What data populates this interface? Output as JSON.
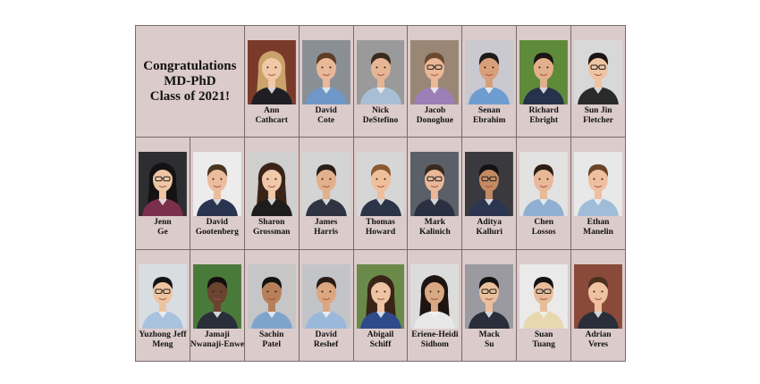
{
  "title": {
    "line1": "Congratulations",
    "line2": "MD-PhD",
    "line3": "Class of 2021!"
  },
  "graduates": [
    {
      "first": "Ann",
      "last": "Cathcart",
      "bg": "#7a3a2a",
      "hair": "#c9a36a",
      "skin": "#f0c8a8",
      "shirt": "#1e1e24",
      "glasses": false,
      "long_hair": true
    },
    {
      "first": "David",
      "last": "Cote",
      "bg": "#8a8f96",
      "hair": "#5a3e28",
      "skin": "#e8b898",
      "shirt": "#6f98c9",
      "glasses": false,
      "long_hair": false
    },
    {
      "first": "Nick",
      "last": "DeStefino",
      "bg": "#9a9a9a",
      "hair": "#3a2a1e",
      "skin": "#e6b594",
      "shirt": "#a8bed4",
      "glasses": false,
      "long_hair": false
    },
    {
      "first": "Jacob",
      "last": "Donoghue",
      "bg": "#9a8674",
      "hair": "#6a4a30",
      "skin": "#eab896",
      "shirt": "#9b7fb6",
      "glasses": true,
      "long_hair": false
    },
    {
      "first": "Senan",
      "last": "Ebrahim",
      "bg": "#c9c9cf",
      "hair": "#1e1a18",
      "skin": "#d8a07a",
      "shirt": "#6f9cd0",
      "glasses": false,
      "long_hair": false
    },
    {
      "first": "Richard",
      "last": "Ebright",
      "bg": "#5f8a3a",
      "hair": "#1a1616",
      "skin": "#e2b08a",
      "shirt": "#26324a",
      "glasses": false,
      "long_hair": false
    },
    {
      "first": "Sun Jin",
      "last": "Fletcher",
      "bg": "#d8d8d8",
      "hair": "#1a1414",
      "skin": "#efc4a2",
      "shirt": "#2a2a2a",
      "glasses": true,
      "long_hair": false
    },
    {
      "first": "Jenn",
      "last": "Ge",
      "bg": "#2e2e32",
      "hair": "#141212",
      "skin": "#eec6a4",
      "shirt": "#7b2f4a",
      "glasses": true,
      "long_hair": true
    },
    {
      "first": "David",
      "last": "Gootenberg",
      "bg": "#ececec",
      "hair": "#4a3422",
      "skin": "#ebbd9c",
      "shirt": "#2a3450",
      "glasses": false,
      "long_hair": false
    },
    {
      "first": "Sharon",
      "last": "Grossman",
      "bg": "#cfcfcf",
      "hair": "#3a2418",
      "skin": "#f0c8aa",
      "shirt": "#1d1d1d",
      "glasses": false,
      "long_hair": true
    },
    {
      "first": "James",
      "last": "Harris",
      "bg": "#d4d4d4",
      "hair": "#2a1e18",
      "skin": "#e3b08c",
      "shirt": "#2e3442",
      "glasses": false,
      "long_hair": false
    },
    {
      "first": "Thomas",
      "last": "Howard",
      "bg": "#d6d6d6",
      "hair": "#8a5a30",
      "skin": "#efbf9c",
      "shirt": "#2c3448",
      "glasses": false,
      "long_hair": false
    },
    {
      "first": "Mark",
      "last": "Kalinich",
      "bg": "#5a5f68",
      "hair": "#3a2a1e",
      "skin": "#e8b898",
      "shirt": "#2a3042",
      "glasses": true,
      "long_hair": false
    },
    {
      "first": "Aditya",
      "last": "Kalluri",
      "bg": "#3a3a3e",
      "hair": "#141212",
      "skin": "#c48a62",
      "shirt": "#2c3650",
      "glasses": true,
      "long_hair": false
    },
    {
      "first": "Chen",
      "last": "Lossos",
      "bg": "#e2e2e2",
      "hair": "#2a1e18",
      "skin": "#e8b898",
      "shirt": "#8fb0d2",
      "glasses": false,
      "long_hair": false
    },
    {
      "first": "Ethan",
      "last": "Manelin",
      "bg": "#e8e8e8",
      "hair": "#6a4428",
      "skin": "#efc0a0",
      "shirt": "#9fbcd8",
      "glasses": false,
      "long_hair": false
    },
    {
      "first": "Yuzhong Jeff",
      "last": "Meng",
      "bg": "#d8dde2",
      "hair": "#141414",
      "skin": "#eec4a0",
      "shirt": "#a8c2de",
      "glasses": true,
      "long_hair": false
    },
    {
      "first": "Jamaji",
      "last": "Nwanaji-Enwerem",
      "bg": "#4a7a3a",
      "hair": "#141010",
      "skin": "#6a4430",
      "shirt": "#2a2e3a",
      "glasses": false,
      "long_hair": false
    },
    {
      "first": "Sachin",
      "last": "Patel",
      "bg": "#c6c6c6",
      "hair": "#141212",
      "skin": "#b8805a",
      "shirt": "#7fa4cc",
      "glasses": false,
      "long_hair": false
    },
    {
      "first": "David",
      "last": "Reshef",
      "bg": "#c2c4c8",
      "hair": "#2a1c14",
      "skin": "#dca680",
      "shirt": "#9ab8da",
      "glasses": false,
      "long_hair": false
    },
    {
      "first": "Abigail",
      "last": "Schiff",
      "bg": "#6a8a4a",
      "hair": "#3a2418",
      "skin": "#eec4a4",
      "shirt": "#2e4a8a",
      "glasses": false,
      "long_hair": true
    },
    {
      "first": "Eriene-Heidi",
      "last": "Sidhom",
      "bg": "#dcdcdc",
      "hair": "#1e1412",
      "skin": "#d8a884",
      "shirt": "#e8e8e8",
      "glasses": false,
      "long_hair": true
    },
    {
      "first": "Mack",
      "last": "Su",
      "bg": "#9a9aa0",
      "hair": "#141212",
      "skin": "#eabf9c",
      "shirt": "#2a2e3a",
      "glasses": true,
      "long_hair": false
    },
    {
      "first": "Suan",
      "last": "Tuang",
      "bg": "#eaeaea",
      "hair": "#141212",
      "skin": "#e8bc98",
      "shirt": "#e8d8b0",
      "glasses": true,
      "long_hair": false
    },
    {
      "first": "Adrian",
      "last": "Veres",
      "bg": "#8a4a3a",
      "hair": "#4a3020",
      "skin": "#eec2a0",
      "shirt": "#2a2e3a",
      "glasses": false,
      "long_hair": false
    }
  ]
}
